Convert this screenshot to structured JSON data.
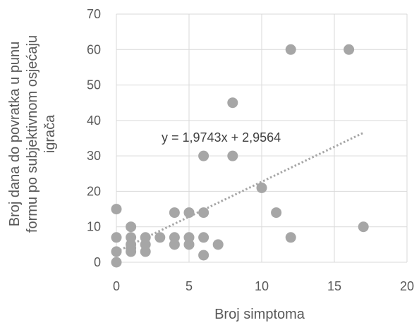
{
  "chart_data": {
    "type": "scatter",
    "title": "",
    "xlabel": "Broj simptoma",
    "ylabel_lines": [
      "Broj dana do povratka u punu",
      "formu po subjektivnom osjećaju",
      "igrača"
    ],
    "xlim": [
      0,
      20
    ],
    "ylim": [
      0,
      70
    ],
    "xticks": [
      0,
      5,
      10,
      15,
      20
    ],
    "yticks": [
      0,
      10,
      20,
      30,
      40,
      50,
      60,
      70
    ],
    "grid": "vertical",
    "series": [
      {
        "color": "#a6a6a6",
        "points": [
          [
            0,
            0
          ],
          [
            0,
            3
          ],
          [
            0,
            7
          ],
          [
            0,
            15
          ],
          [
            1,
            3
          ],
          [
            1,
            4
          ],
          [
            1,
            5
          ],
          [
            1,
            7
          ],
          [
            1,
            10
          ],
          [
            2,
            3
          ],
          [
            2,
            5
          ],
          [
            2,
            7
          ],
          [
            3,
            7
          ],
          [
            4,
            5
          ],
          [
            4,
            7
          ],
          [
            4,
            14
          ],
          [
            5,
            5
          ],
          [
            5,
            7
          ],
          [
            5,
            14
          ],
          [
            6,
            2
          ],
          [
            6,
            7
          ],
          [
            6,
            14
          ],
          [
            6,
            30
          ],
          [
            7,
            5
          ],
          [
            8,
            30
          ],
          [
            8,
            45
          ],
          [
            10,
            21
          ],
          [
            11,
            14
          ],
          [
            12,
            7
          ],
          [
            12,
            60
          ],
          [
            16,
            60
          ],
          [
            17,
            10
          ]
        ]
      }
    ],
    "trendline": {
      "type": "linear",
      "slope": 1.9743,
      "intercept": 2.9564,
      "x_range": [
        0,
        17
      ],
      "color": "#a6a6a6",
      "style": "dotted",
      "equation_label": "y = 1,9743x + 2,9564"
    },
    "colors": {
      "gridline": "#d9d9d9",
      "axis_text": "#595959",
      "marker": "#a6a6a6"
    }
  }
}
